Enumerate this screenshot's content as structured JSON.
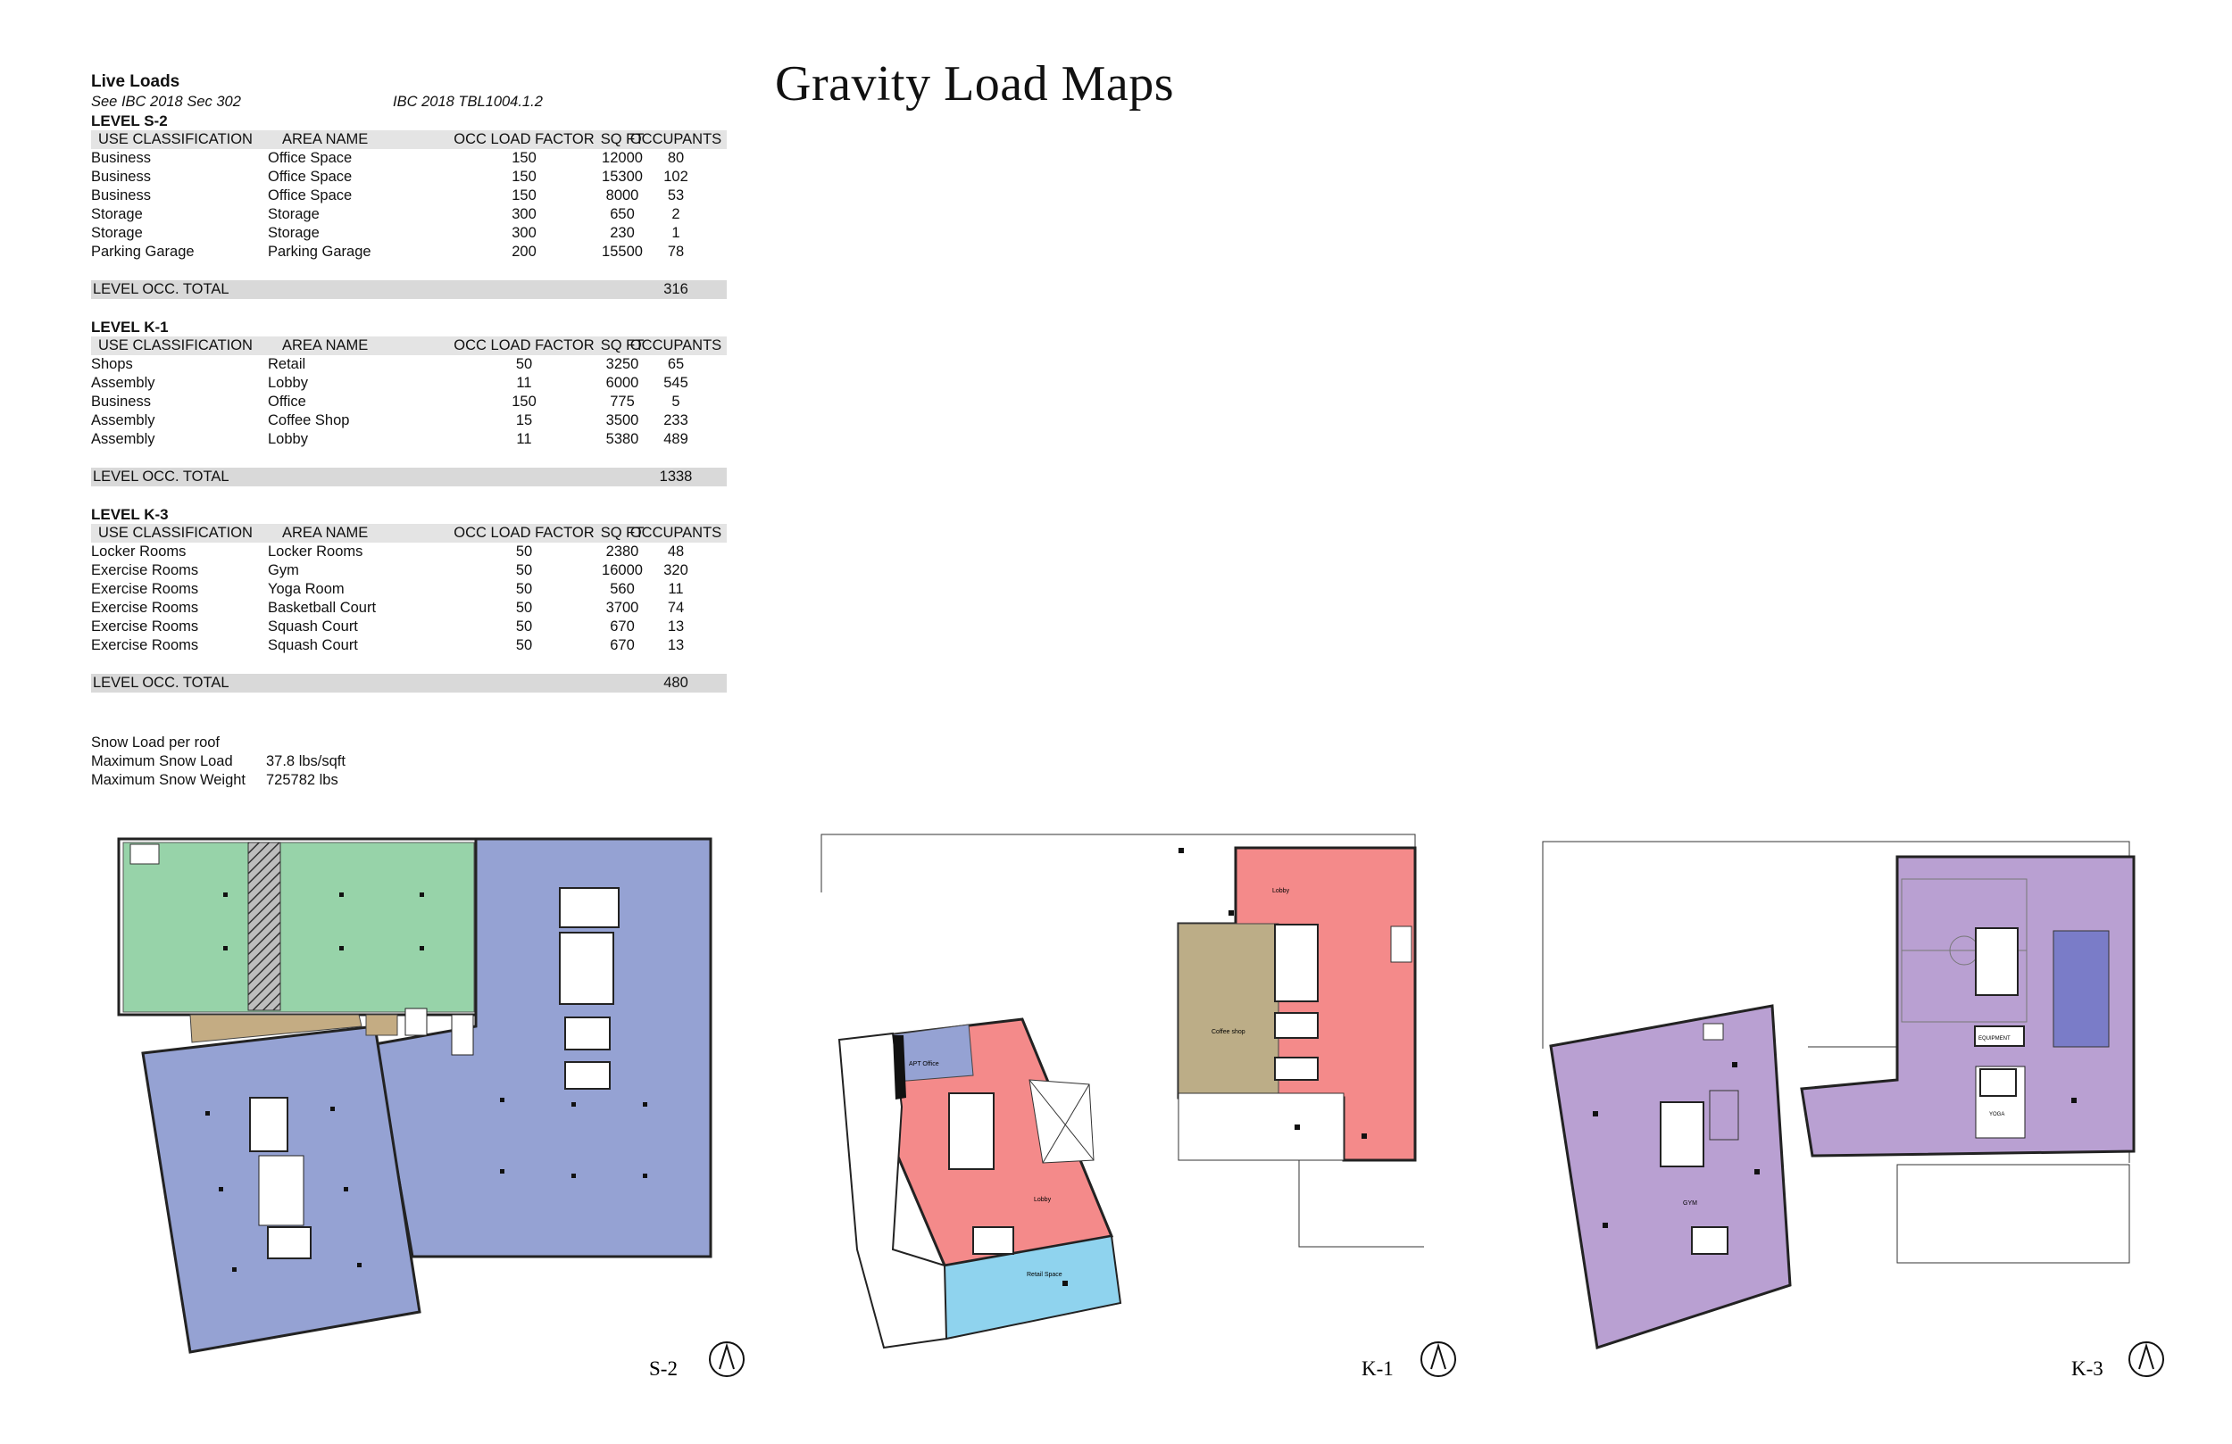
{
  "page_title": "Gravity Load Maps",
  "live_loads": {
    "heading": "Live Loads",
    "ref_left": "See IBC 2018 Sec 302",
    "ref_right": "IBC 2018 TBL1004.1.2"
  },
  "columns": [
    "USE CLASSIFICATION",
    "AREA NAME",
    "OCC LOAD FACTOR",
    "SQ FT",
    "OCCUPANTS"
  ],
  "total_label": "LEVEL OCC. TOTAL",
  "levels": [
    {
      "title": "LEVEL S-2",
      "rows": [
        [
          "Business",
          "Office Space",
          "150",
          "12000",
          "80"
        ],
        [
          "Business",
          "Office Space",
          "150",
          "15300",
          "102"
        ],
        [
          "Business",
          "Office Space",
          "150",
          "8000",
          "53"
        ],
        [
          "Storage",
          "Storage",
          "300",
          "650",
          "2"
        ],
        [
          "Storage",
          "Storage",
          "300",
          "230",
          "1"
        ],
        [
          "Parking Garage",
          "Parking Garage",
          "200",
          "15500",
          "78"
        ]
      ],
      "total": "316"
    },
    {
      "title": "LEVEL K-1",
      "rows": [
        [
          "Shops",
          "Retail",
          "50",
          "3250",
          "65"
        ],
        [
          "Assembly",
          "Lobby",
          "11",
          "6000",
          "545"
        ],
        [
          "Business",
          "Office",
          "150",
          "775",
          "5"
        ],
        [
          "Assembly",
          "Coffee Shop",
          "15",
          "3500",
          "233"
        ],
        [
          "Assembly",
          "Lobby",
          "11",
          "5380",
          "489"
        ]
      ],
      "total": "1338"
    },
    {
      "title": "LEVEL K-3",
      "rows": [
        [
          "Locker Rooms",
          "Locker Rooms",
          "50",
          "2380",
          "48"
        ],
        [
          "Exercise Rooms",
          "Gym",
          "50",
          "16000",
          "320"
        ],
        [
          "Exercise Rooms",
          "Yoga Room",
          "50",
          "560",
          "11"
        ],
        [
          "Exercise Rooms",
          "Basketball Court",
          "50",
          "3700",
          "74"
        ],
        [
          "Exercise Rooms",
          "Squash Court",
          "50",
          "670",
          "13"
        ],
        [
          "Exercise Rooms",
          "Squash Court",
          "50",
          "670",
          "13"
        ]
      ],
      "total": "480"
    }
  ],
  "snow": {
    "heading": "Snow Load per roof",
    "max_load_label": "Maximum Snow Load",
    "max_load_value": "37.8 lbs/sqft",
    "max_weight_label": "Maximum Snow Weight",
    "max_weight_value": "725782 lbs"
  },
  "plans": {
    "s2_label": "S-2",
    "k1_label": "K-1",
    "k3_label": "K-3",
    "k1_rooms": {
      "apt_office": "APT Office",
      "lobby_left": "Lobby",
      "retail": "Retail Space",
      "coffee": "Coffee shop",
      "lobby_right": "Lobby"
    },
    "k3_rooms": {
      "gym": "GYM",
      "equipment": "EQUIPMENT",
      "yoga": "YOGA"
    }
  },
  "colors": {
    "office_blue": "#95a2d3",
    "parking_green": "#97d3a9",
    "storage_tan": "#c4ac83",
    "lobby_red": "#f48a8a",
    "retail_cyan": "#8fd3ee",
    "coffee_olive": "#bcad87",
    "gym_purple": "#b9a0d2",
    "locker_indigo": "#7a7cc8",
    "table_header_grey": "#e4e4e4"
  }
}
